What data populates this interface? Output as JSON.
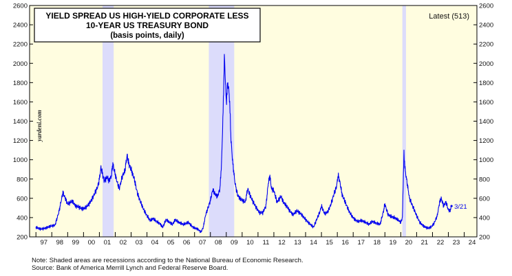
{
  "chart_data": {
    "type": "line",
    "title_lines": [
      "YIELD SPREAD US HIGH-YIELD CORPORATE LESS",
      "10-YEAR US TREASURY BOND",
      "(basis points, daily)"
    ],
    "latest_label": "Latest (513)",
    "end_label": "3/21",
    "watermark": "yardeni.com",
    "ylim": [
      200,
      2600
    ],
    "y_ticks": [
      200,
      400,
      600,
      800,
      1000,
      1200,
      1400,
      1600,
      1800,
      2000,
      2200,
      2400,
      2600
    ],
    "x_range": [
      1996.6,
      2024.8
    ],
    "x_tick_labels": [
      "97",
      "98",
      "99",
      "00",
      "01",
      "02",
      "03",
      "04",
      "05",
      "06",
      "07",
      "08",
      "09",
      "10",
      "11",
      "12",
      "13",
      "14",
      "15",
      "16",
      "17",
      "18",
      "19",
      "20",
      "21",
      "22",
      "23",
      "24"
    ],
    "x_tick_start_year": 1997,
    "recessions": [
      [
        2001.2,
        2001.9
      ],
      [
        2007.9,
        2009.5
      ],
      [
        2020.1,
        2020.33
      ]
    ],
    "series": [
      {
        "name": "Yield spread (bp)",
        "color": "#0000ee",
        "points": [
          [
            1997.0,
            300
          ],
          [
            1997.3,
            280
          ],
          [
            1997.6,
            290
          ],
          [
            1997.9,
            310
          ],
          [
            1998.2,
            320
          ],
          [
            1998.45,
            460
          ],
          [
            1998.7,
            660
          ],
          [
            1998.85,
            600
          ],
          [
            1999.0,
            540
          ],
          [
            1999.3,
            570
          ],
          [
            1999.5,
            520
          ],
          [
            1999.7,
            510
          ],
          [
            1999.9,
            490
          ],
          [
            2000.1,
            500
          ],
          [
            2000.3,
            530
          ],
          [
            2000.5,
            580
          ],
          [
            2000.7,
            650
          ],
          [
            2000.9,
            720
          ],
          [
            2001.0,
            800
          ],
          [
            2001.1,
            920
          ],
          [
            2001.3,
            780
          ],
          [
            2001.5,
            820
          ],
          [
            2001.6,
            780
          ],
          [
            2001.75,
            830
          ],
          [
            2001.85,
            960
          ],
          [
            2001.95,
            880
          ],
          [
            2002.1,
            780
          ],
          [
            2002.25,
            700
          ],
          [
            2002.45,
            830
          ],
          [
            2002.6,
            880
          ],
          [
            2002.75,
            1050
          ],
          [
            2002.85,
            960
          ],
          [
            2003.0,
            900
          ],
          [
            2003.2,
            800
          ],
          [
            2003.4,
            650
          ],
          [
            2003.6,
            560
          ],
          [
            2003.8,
            480
          ],
          [
            2004.0,
            420
          ],
          [
            2004.2,
            370
          ],
          [
            2004.4,
            390
          ],
          [
            2004.6,
            360
          ],
          [
            2004.8,
            340
          ],
          [
            2005.0,
            300
          ],
          [
            2005.2,
            380
          ],
          [
            2005.35,
            360
          ],
          [
            2005.6,
            330
          ],
          [
            2005.8,
            380
          ],
          [
            2006.0,
            350
          ],
          [
            2006.3,
            330
          ],
          [
            2006.6,
            350
          ],
          [
            2006.9,
            300
          ],
          [
            2007.2,
            280
          ],
          [
            2007.4,
            250
          ],
          [
            2007.55,
            300
          ],
          [
            2007.7,
            430
          ],
          [
            2007.85,
            500
          ],
          [
            2008.0,
            580
          ],
          [
            2008.15,
            690
          ],
          [
            2008.3,
            640
          ],
          [
            2008.45,
            620
          ],
          [
            2008.6,
            700
          ],
          [
            2008.7,
            960
          ],
          [
            2008.8,
            1500
          ],
          [
            2008.88,
            2060
          ],
          [
            2008.95,
            1800
          ],
          [
            2009.0,
            1600
          ],
          [
            2009.1,
            1800
          ],
          [
            2009.2,
            1650
          ],
          [
            2009.3,
            1200
          ],
          [
            2009.4,
            980
          ],
          [
            2009.55,
            760
          ],
          [
            2009.7,
            640
          ],
          [
            2009.85,
            600
          ],
          [
            2010.0,
            580
          ],
          [
            2010.2,
            560
          ],
          [
            2010.35,
            700
          ],
          [
            2010.5,
            630
          ],
          [
            2010.7,
            560
          ],
          [
            2010.9,
            500
          ],
          [
            2011.1,
            450
          ],
          [
            2011.3,
            450
          ],
          [
            2011.5,
            520
          ],
          [
            2011.65,
            760
          ],
          [
            2011.75,
            830
          ],
          [
            2011.85,
            700
          ],
          [
            2012.0,
            680
          ],
          [
            2012.2,
            560
          ],
          [
            2012.45,
            620
          ],
          [
            2012.6,
            560
          ],
          [
            2012.8,
            520
          ],
          [
            2013.0,
            470
          ],
          [
            2013.2,
            430
          ],
          [
            2013.45,
            470
          ],
          [
            2013.7,
            440
          ],
          [
            2013.9,
            400
          ],
          [
            2014.1,
            360
          ],
          [
            2014.3,
            330
          ],
          [
            2014.5,
            300
          ],
          [
            2014.7,
            380
          ],
          [
            2014.9,
            460
          ],
          [
            2015.0,
            520
          ],
          [
            2015.2,
            440
          ],
          [
            2015.4,
            460
          ],
          [
            2015.6,
            540
          ],
          [
            2015.8,
            650
          ],
          [
            2015.95,
            720
          ],
          [
            2016.05,
            840
          ],
          [
            2016.15,
            780
          ],
          [
            2016.3,
            640
          ],
          [
            2016.5,
            560
          ],
          [
            2016.7,
            480
          ],
          [
            2016.9,
            420
          ],
          [
            2017.1,
            380
          ],
          [
            2017.3,
            360
          ],
          [
            2017.5,
            370
          ],
          [
            2017.8,
            350
          ],
          [
            2018.0,
            330
          ],
          [
            2018.2,
            360
          ],
          [
            2018.5,
            340
          ],
          [
            2018.7,
            330
          ],
          [
            2018.9,
            460
          ],
          [
            2019.0,
            540
          ],
          [
            2019.2,
            430
          ],
          [
            2019.4,
            410
          ],
          [
            2019.6,
            400
          ],
          [
            2019.8,
            380
          ],
          [
            2020.0,
            350
          ],
          [
            2020.1,
            400
          ],
          [
            2020.2,
            1060
          ],
          [
            2020.27,
            900
          ],
          [
            2020.4,
            760
          ],
          [
            2020.55,
            600
          ],
          [
            2020.7,
            540
          ],
          [
            2020.85,
            480
          ],
          [
            2021.0,
            420
          ],
          [
            2021.2,
            350
          ],
          [
            2021.45,
            310
          ],
          [
            2021.7,
            290
          ],
          [
            2021.9,
            300
          ],
          [
            2022.1,
            340
          ],
          [
            2022.3,
            420
          ],
          [
            2022.45,
            560
          ],
          [
            2022.55,
            600
          ],
          [
            2022.7,
            520
          ],
          [
            2022.85,
            560
          ],
          [
            2023.0,
            480
          ],
          [
            2023.1,
            470
          ],
          [
            2023.2,
            520
          ]
        ]
      }
    ],
    "notes": [
      "Note: Shaded areas are recessions according to the National Bureau of Economic Research.",
      "Source: Bank of America Merrill Lynch and Federal Reserve Board."
    ]
  }
}
